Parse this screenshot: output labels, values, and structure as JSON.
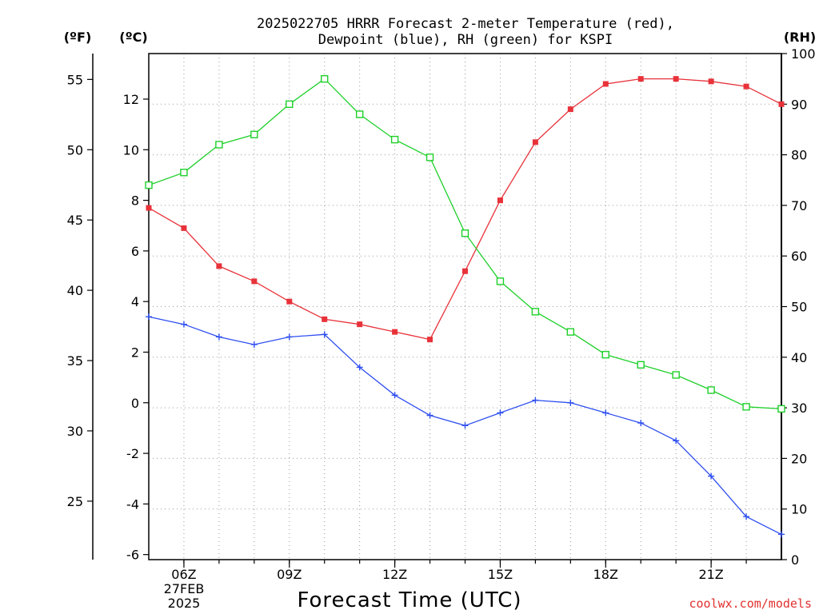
{
  "title_line1": "2025022705 HRRR Forecast 2-meter Temperature (red),",
  "title_line2": "Dewpoint (blue), RH (green) for KSPI",
  "credit": "coolwx.com/models",
  "units": {
    "fahrenheit": "(ºF)",
    "celsius": "(ºC)",
    "rh": "(RH)"
  },
  "x_ticks": [
    {
      "hour": 6,
      "label": "06Z"
    },
    {
      "hour": 9,
      "label": "09Z"
    },
    {
      "hour": 12,
      "label": "12Z"
    },
    {
      "hour": 15,
      "label": "15Z"
    },
    {
      "hour": 18,
      "label": "18Z"
    },
    {
      "hour": 21,
      "label": "21Z"
    }
  ],
  "date_label_1": "27FEB",
  "date_label_2": "2025",
  "colors": {
    "temperature": "#e8323a",
    "dewpoint": "#2f4ff0",
    "rh": "#1fd02a",
    "credit": "#e0302f"
  },
  "chart_data": {
    "type": "line",
    "xlabel": "Forecast Time (UTC)",
    "x_hours_utc": [
      5,
      6,
      7,
      8,
      9,
      10,
      11,
      12,
      13,
      14,
      15,
      16,
      17,
      18,
      19,
      20,
      21,
      22,
      23
    ],
    "xlim": [
      5,
      23
    ],
    "y_left_celsius": {
      "ylim": [
        -6.2,
        13.8
      ],
      "ticks": [
        -6,
        -4,
        -2,
        0,
        2,
        4,
        6,
        8,
        10,
        12
      ]
    },
    "y_left_fahrenheit": {
      "ticks": [
        25,
        30,
        35,
        40,
        45,
        50,
        55
      ]
    },
    "y_right_rh": {
      "ylim": [
        0,
        100
      ],
      "ticks": [
        0,
        10,
        20,
        30,
        40,
        50,
        60,
        70,
        80,
        90,
        100
      ]
    },
    "grid": true,
    "series": [
      {
        "name": "Temperature",
        "axis": "celsius",
        "marker": "filled-square",
        "values": [
          7.7,
          6.9,
          5.4,
          4.8,
          4.0,
          3.3,
          3.1,
          2.8,
          2.5,
          5.2,
          8.0,
          10.3,
          11.6,
          12.6,
          12.8,
          12.8,
          12.7,
          12.5,
          11.8
        ]
      },
      {
        "name": "Dewpoint",
        "axis": "celsius",
        "marker": "plus",
        "values": [
          3.4,
          3.1,
          2.6,
          2.3,
          2.6,
          2.7,
          1.4,
          0.3,
          -0.5,
          -0.9,
          -0.4,
          0.1,
          0.0,
          -0.4,
          -0.8,
          -1.5,
          -2.9,
          -4.5,
          -5.2
        ]
      },
      {
        "name": "RH",
        "axis": "rh",
        "marker": "open-square",
        "values": [
          74,
          76.5,
          82,
          84,
          90,
          95,
          88,
          83,
          79.5,
          64.5,
          55,
          49,
          45,
          40.5,
          38.5,
          36.5,
          33.5,
          30.2,
          29.8
        ]
      }
    ]
  }
}
